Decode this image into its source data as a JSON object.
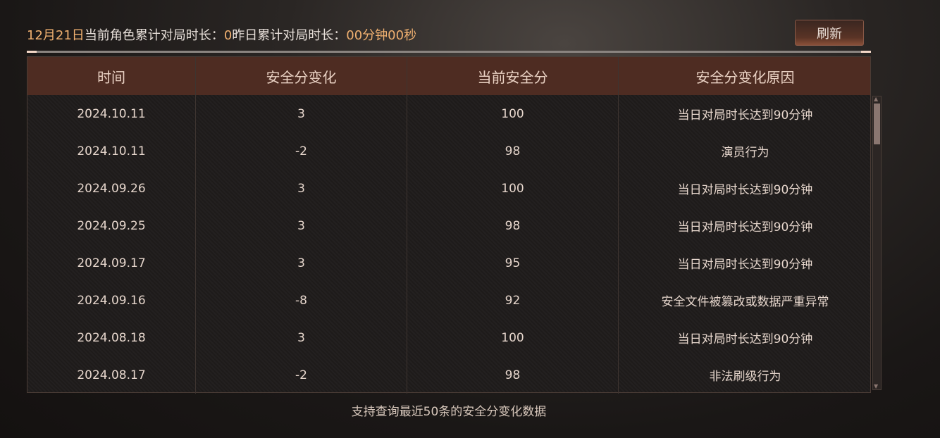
{
  "header": {
    "date": "12月21日",
    "today_label": "当前角色累计对局时长：",
    "today_value": "0",
    "yesterday_label": "昨日累计对局时长：",
    "yesterday_value": "00分钟00秒"
  },
  "refresh_label": "刷新",
  "table": {
    "columns": [
      "时间",
      "安全分变化",
      "当前安全分",
      "安全分变化原因"
    ],
    "rows": [
      [
        "2024.10.11",
        "3",
        "100",
        "当日对局时长达到90分钟"
      ],
      [
        "2024.10.11",
        "-2",
        "98",
        "演员行为"
      ],
      [
        "2024.09.26",
        "3",
        "100",
        "当日对局时长达到90分钟"
      ],
      [
        "2024.09.25",
        "3",
        "98",
        "当日对局时长达到90分钟"
      ],
      [
        "2024.09.17",
        "3",
        "95",
        "当日对局时长达到90分钟"
      ],
      [
        "2024.09.16",
        "-8",
        "92",
        "安全文件被篡改或数据严重异常"
      ],
      [
        "2024.08.18",
        "3",
        "100",
        "当日对局时长达到90分钟"
      ],
      [
        "2024.08.17",
        "-2",
        "98",
        "非法刷级行为"
      ]
    ]
  },
  "footer": "支持查询最近50条的安全分变化数据"
}
